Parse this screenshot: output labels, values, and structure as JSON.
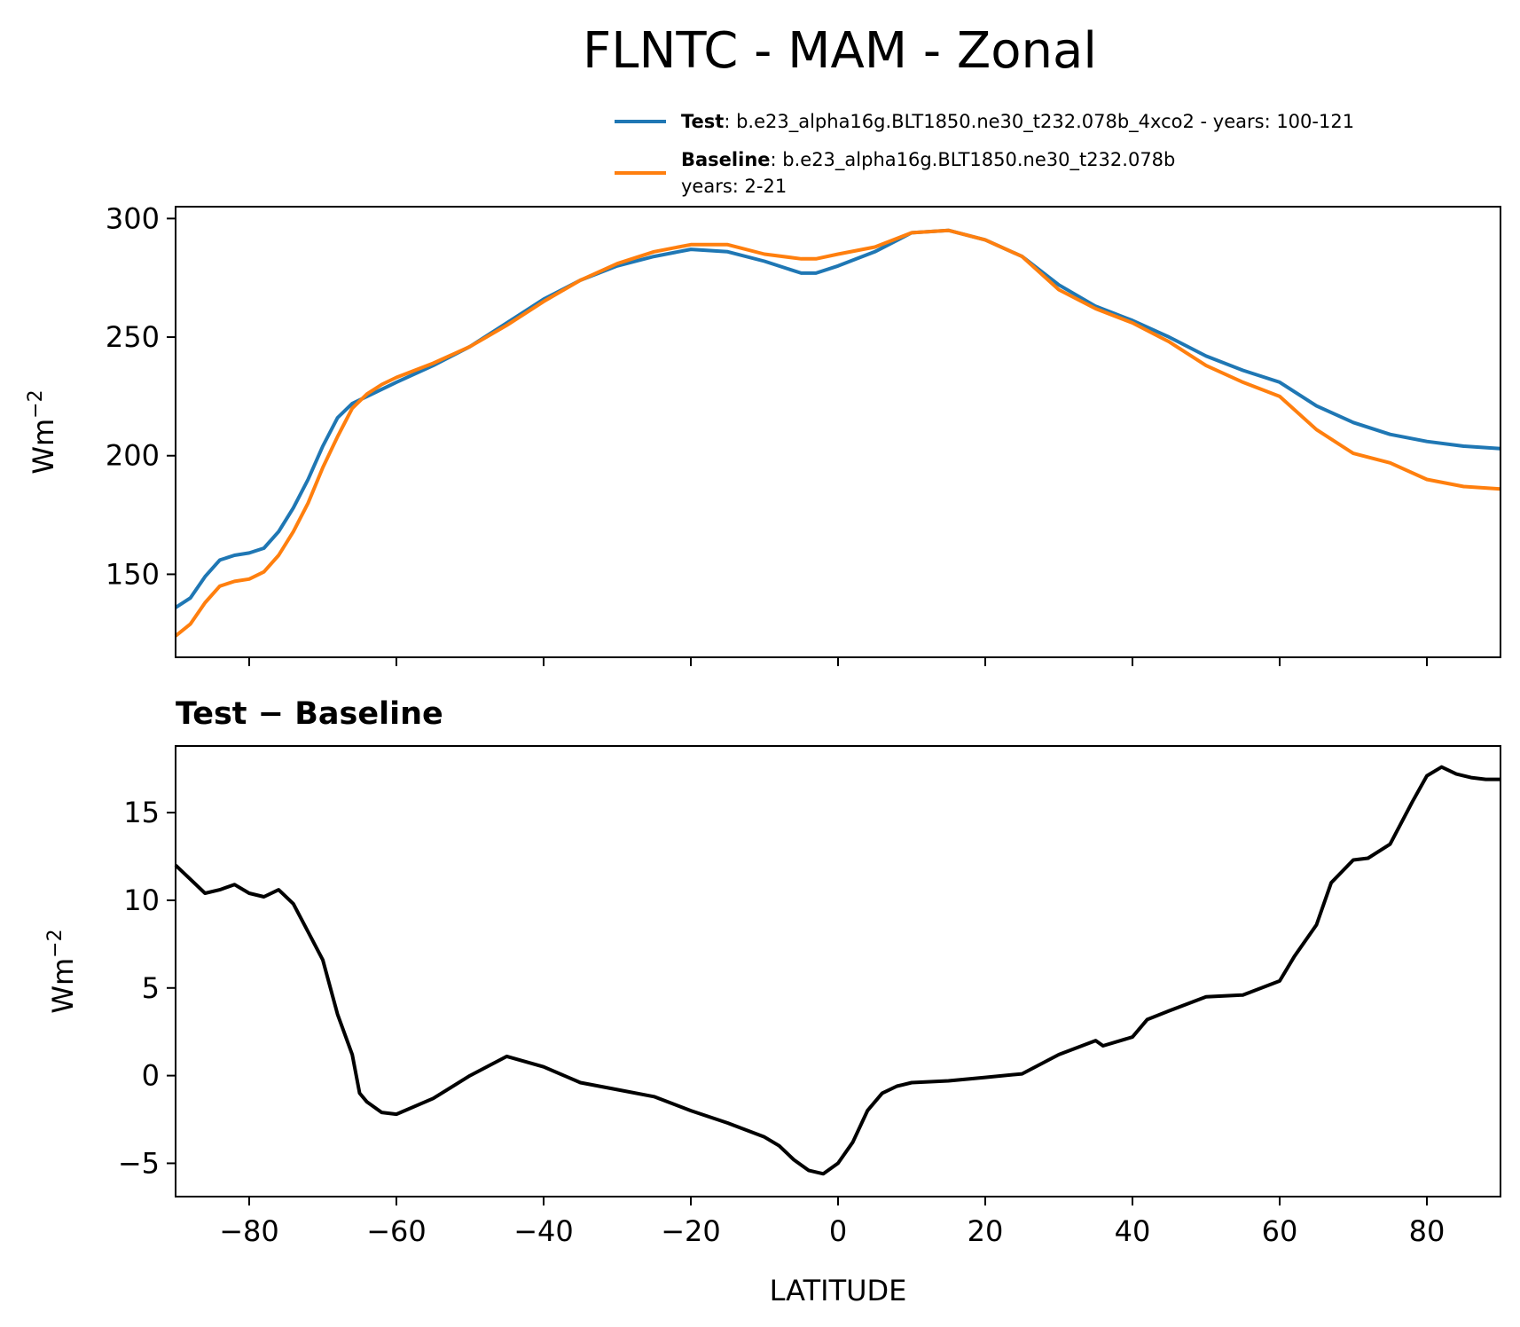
{
  "chart_data": [
    {
      "type": "line",
      "title": "FLNTC - MAM - Zonal",
      "ylabel_base": "Wm",
      "ylabel_sup": "−2",
      "xlim": [
        -90,
        90
      ],
      "ylim": [
        115,
        305
      ],
      "yticks": [
        150,
        200,
        250,
        300
      ],
      "ytick_labels": [
        "150",
        "200",
        "250",
        "300"
      ],
      "xticks": [
        -80,
        -60,
        -40,
        -20,
        0,
        20,
        40,
        60,
        80
      ],
      "legend": {
        "placement": "top-right",
        "entries": [
          {
            "label": "Test",
            "text": ": b.e23_alpha16g.BLT1850.ne30_t232.078b_4xco2 - years: 100-121",
            "text2": "",
            "color": "#1f77b4"
          },
          {
            "label": "Baseline",
            "text": ": b.e23_alpha16g.BLT1850.ne30_t232.078b",
            "text2": "years: 2-21",
            "color": "#ff7f0e"
          }
        ]
      },
      "series": [
        {
          "name": "Test",
          "color": "#1f77b4",
          "x": [
            -90,
            -88,
            -86,
            -84,
            -82,
            -80,
            -78,
            -76,
            -74,
            -72,
            -70,
            -68,
            -66,
            -64,
            -62,
            -60,
            -55,
            -50,
            -45,
            -40,
            -35,
            -30,
            -25,
            -20,
            -15,
            -10,
            -5,
            -3,
            0,
            5,
            10,
            15,
            20,
            25,
            30,
            35,
            40,
            45,
            50,
            55,
            60,
            65,
            70,
            75,
            80,
            85,
            90
          ],
          "y": [
            136,
            140,
            149,
            156,
            158,
            159,
            161,
            168,
            178,
            190,
            204,
            216,
            222,
            225,
            228,
            231,
            238,
            246,
            256,
            266,
            274,
            280,
            284,
            287,
            286,
            282,
            277,
            277,
            280,
            286,
            294,
            295,
            291,
            284,
            272,
            263,
            257,
            250,
            242,
            236,
            231,
            221,
            214,
            209,
            206,
            204,
            203
          ]
        },
        {
          "name": "Baseline",
          "color": "#ff7f0e",
          "x": [
            -90,
            -88,
            -86,
            -84,
            -82,
            -80,
            -78,
            -76,
            -74,
            -72,
            -70,
            -68,
            -66,
            -64,
            -62,
            -60,
            -55,
            -50,
            -45,
            -40,
            -35,
            -30,
            -25,
            -20,
            -15,
            -10,
            -5,
            -3,
            0,
            5,
            10,
            15,
            20,
            25,
            30,
            35,
            40,
            45,
            50,
            55,
            60,
            65,
            70,
            75,
            80,
            85,
            90
          ],
          "y": [
            124,
            129,
            138,
            145,
            147,
            148,
            151,
            158,
            168,
            180,
            195,
            208,
            220,
            226,
            230,
            233,
            239,
            246,
            255,
            265,
            274,
            281,
            286,
            289,
            289,
            285,
            283,
            283,
            285,
            288,
            294,
            295,
            291,
            284,
            270,
            262,
            256,
            248,
            238,
            231,
            225,
            211,
            201,
            197,
            190,
            187,
            186
          ]
        }
      ]
    },
    {
      "type": "line",
      "title": "Test − Baseline",
      "ylabel_base": "Wm",
      "ylabel_sup": "−2",
      "xlabel": "LATITUDE",
      "xlim": [
        -90,
        90
      ],
      "ylim": [
        -6.9,
        18.8
      ],
      "yticks": [
        -5,
        0,
        5,
        10,
        15
      ],
      "ytick_labels": [
        "−5",
        "0",
        "5",
        "10",
        "15"
      ],
      "xticks": [
        -80,
        -60,
        -40,
        -20,
        0,
        20,
        40,
        60,
        80
      ],
      "xtick_labels": [
        "−80",
        "−60",
        "−40",
        "−20",
        "0",
        "20",
        "40",
        "60",
        "80"
      ],
      "series": [
        {
          "name": "",
          "color": "#000000",
          "x": [
            -90,
            -88,
            -86,
            -84,
            -82,
            -80,
            -78,
            -76,
            -74,
            -72,
            -70,
            -68,
            -66,
            -65,
            -64,
            -62,
            -60,
            -55,
            -50,
            -45,
            -40,
            -35,
            -30,
            -25,
            -20,
            -15,
            -10,
            -8,
            -6,
            -4,
            -2,
            0,
            2,
            4,
            6,
            8,
            10,
            15,
            20,
            25,
            30,
            35,
            36,
            40,
            42,
            45,
            50,
            55,
            60,
            62,
            65,
            67,
            70,
            72,
            75,
            78,
            80,
            82,
            84,
            86,
            88,
            90
          ],
          "y": [
            12,
            11.2,
            10.4,
            10.6,
            10.9,
            10.4,
            10.2,
            10.6,
            9.8,
            8.2,
            6.6,
            3.5,
            1.2,
            -1.0,
            -1.5,
            -2.1,
            -2.2,
            -1.3,
            0.0,
            1.1,
            0.5,
            -0.4,
            -0.8,
            -1.2,
            -2.0,
            -2.7,
            -3.5,
            -4.0,
            -4.8,
            -5.4,
            -5.6,
            -5.0,
            -3.8,
            -2.0,
            -1.0,
            -0.6,
            -0.4,
            -0.3,
            -0.1,
            0.1,
            1.2,
            2.0,
            1.7,
            2.2,
            3.2,
            3.7,
            4.5,
            4.6,
            5.4,
            6.8,
            8.6,
            11.0,
            12.3,
            12.4,
            13.2,
            15.6,
            17.1,
            17.6,
            17.2,
            17.0,
            16.9,
            16.9
          ]
        }
      ]
    }
  ]
}
